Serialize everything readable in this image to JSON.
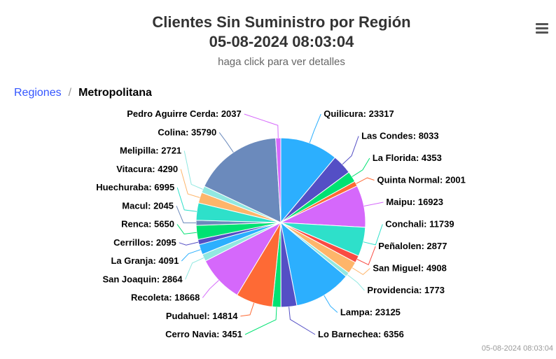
{
  "header": {
    "title_line1": "Clientes Sin Suministro por Región",
    "title_line2": "05-08-2024 08:03:04",
    "subtitle": "haga click para ver detalles"
  },
  "breadcrumb": {
    "root": "Regiones",
    "separator": "/",
    "current": "Metropolitana"
  },
  "menu_icon": "hamburger-menu-icon",
  "credit": "05-08-2024 08:03:04",
  "chart_data": {
    "type": "pie",
    "title": "Clientes Sin Suministro por Región",
    "subtitle": "haga click para ver detalles",
    "slices": [
      {
        "name": "Quilicura",
        "value": 23317,
        "color": "#2caffe"
      },
      {
        "name": "Las Condes",
        "value": 8033,
        "color": "#544fc5"
      },
      {
        "name": "La Florida",
        "value": 4353,
        "color": "#00e272"
      },
      {
        "name": "Quinta Normal",
        "value": 2001,
        "color": "#fe6a35"
      },
      {
        "name": "Maipu",
        "value": 16923,
        "color": "#d568fb"
      },
      {
        "name": "Conchali",
        "value": 11739,
        "color": "#2ee0ca"
      },
      {
        "name": "Peñalolen",
        "value": 2877,
        "color": "#fa4b42"
      },
      {
        "name": "San Miguel",
        "value": 4908,
        "color": "#feb56a"
      },
      {
        "name": "Providencia",
        "value": 1773,
        "color": "#91e8e1"
      },
      {
        "name": "Lampa",
        "value": 23125,
        "color": "#2caffe"
      },
      {
        "name": "Lo Barnechea",
        "value": 6356,
        "color": "#544fc5"
      },
      {
        "name": "Cerro Navia",
        "value": 3451,
        "color": "#00e272"
      },
      {
        "name": "Pudahuel",
        "value": 14814,
        "color": "#fe6a35"
      },
      {
        "name": "Recoleta",
        "value": 18668,
        "color": "#d568fb"
      },
      {
        "name": "San Joaquin",
        "value": 2864,
        "color": "#91e8e1"
      },
      {
        "name": "La Granja",
        "value": 4091,
        "color": "#2caffe"
      },
      {
        "name": "Cerrillos",
        "value": 2095,
        "color": "#544fc5"
      },
      {
        "name": "Renca",
        "value": 5650,
        "color": "#00e272"
      },
      {
        "name": "Macul",
        "value": 2045,
        "color": "#6b8abc"
      },
      {
        "name": "Huechuraba",
        "value": 6995,
        "color": "#2ee0ca"
      },
      {
        "name": "Vitacura",
        "value": 4290,
        "color": "#feb56a"
      },
      {
        "name": "Melipilla",
        "value": 2721,
        "color": "#91e8e1"
      },
      {
        "name": "Colina",
        "value": 35790,
        "color": "#6b8abc"
      },
      {
        "name": "Pedro Aguirre Cerda",
        "value": 2037,
        "color": "#d568fb"
      }
    ]
  }
}
